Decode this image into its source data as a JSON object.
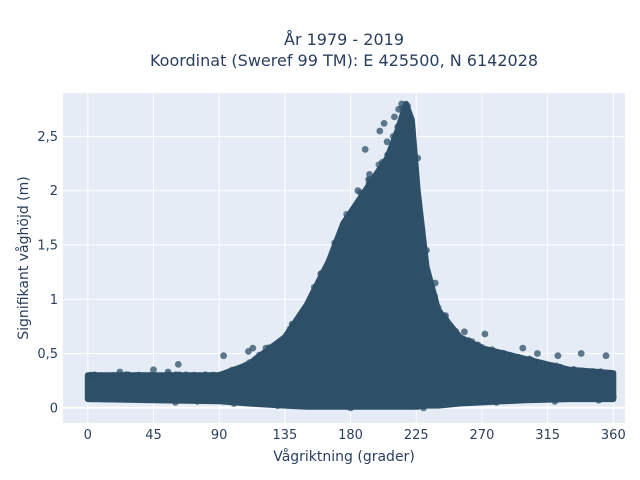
{
  "chart_data": {
    "type": "scatter",
    "title_line1": "År 1979 - 2019",
    "title_line2": "Koordinat (Sweref 99 TM): E 425500, N 6142028",
    "xlabel": "Vågriktning (grader)",
    "ylabel": "Signifikant våghöjd (m)",
    "xlim": [
      -17,
      368
    ],
    "ylim": [
      -0.14,
      2.9
    ],
    "xticks": [
      0,
      45,
      90,
      135,
      180,
      225,
      270,
      315,
      360
    ],
    "xtick_labels": [
      "0",
      "45",
      "90",
      "135",
      "180",
      "225",
      "270",
      "315",
      "360"
    ],
    "yticks": [
      0,
      0.5,
      1,
      1.5,
      2,
      2.5
    ],
    "ytick_labels": [
      "0",
      "0,5",
      "1",
      "1,5",
      "2",
      "2,5"
    ],
    "grid": true,
    "marker_color": "#2e5068",
    "background_color": "#e5ecf6",
    "envelope": {
      "x": [
        0,
        45,
        90,
        110,
        135,
        150,
        165,
        175,
        185,
        195,
        205,
        212,
        218,
        222,
        226,
        232,
        240,
        255,
        270,
        300,
        330,
        360
      ],
      "y_upper": [
        0.3,
        0.3,
        0.3,
        0.4,
        0.65,
        0.95,
        1.35,
        1.7,
        1.9,
        2.1,
        2.3,
        2.55,
        2.8,
        2.65,
        2.0,
        1.3,
        0.9,
        0.65,
        0.55,
        0.45,
        0.35,
        0.32
      ],
      "y_lower": [
        0.08,
        0.07,
        0.06,
        0.04,
        0.02,
        0.01,
        0.01,
        0.01,
        0.01,
        0.01,
        0.01,
        0.01,
        0.01,
        0.01,
        0.01,
        0.02,
        0.02,
        0.04,
        0.05,
        0.07,
        0.08,
        0.08
      ]
    },
    "points": [
      [
        22,
        0.33
      ],
      [
        35,
        0.3
      ],
      [
        45,
        0.35
      ],
      [
        55,
        0.33
      ],
      [
        62,
        0.4
      ],
      [
        93,
        0.48
      ],
      [
        110,
        0.52
      ],
      [
        113,
        0.55
      ],
      [
        122,
        0.55
      ],
      [
        140,
        0.77
      ],
      [
        152,
        0.8
      ],
      [
        160,
        0.95
      ],
      [
        170,
        1.1
      ],
      [
        178,
        1.6
      ],
      [
        185,
        2.0
      ],
      [
        190,
        2.38
      ],
      [
        193,
        2.15
      ],
      [
        200,
        2.55
      ],
      [
        203,
        2.62
      ],
      [
        205,
        2.45
      ],
      [
        210,
        2.68
      ],
      [
        213,
        2.75
      ],
      [
        215,
        2.8
      ],
      [
        219,
        2.78
      ],
      [
        222,
        2.4
      ],
      [
        226,
        2.3
      ],
      [
        232,
        1.45
      ],
      [
        238,
        1.15
      ],
      [
        245,
        0.85
      ],
      [
        258,
        0.7
      ],
      [
        272,
        0.68
      ],
      [
        285,
        0.5
      ],
      [
        298,
        0.55
      ],
      [
        308,
        0.5
      ],
      [
        322,
        0.48
      ],
      [
        338,
        0.5
      ],
      [
        345,
        0.28
      ],
      [
        355,
        0.48
      ],
      [
        358,
        0.3
      ],
      [
        2,
        0.3
      ],
      [
        5,
        0.1
      ],
      [
        30,
        0.08
      ],
      [
        60,
        0.05
      ],
      [
        75,
        0.06
      ],
      [
        100,
        0.04
      ],
      [
        130,
        0.02
      ],
      [
        180,
        0.0
      ],
      [
        230,
        0.0
      ],
      [
        280,
        0.05
      ],
      [
        320,
        0.06
      ],
      [
        350,
        0.07
      ],
      [
        360,
        0.1
      ]
    ]
  }
}
